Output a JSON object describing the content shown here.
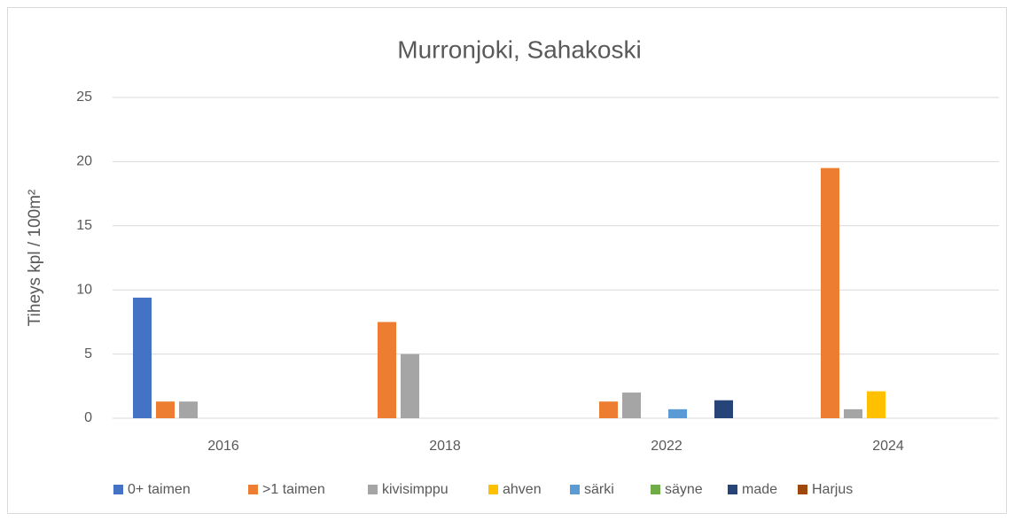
{
  "chart_data": {
    "type": "bar",
    "title": "Murronjoki, Sahakoski",
    "y_label": "Tiheys kpl / 100m²",
    "categories": [
      "2016",
      "2018",
      "2022",
      "2024"
    ],
    "series": [
      {
        "name": "0+ taimen",
        "color": "#4472c4",
        "values": [
          9.4,
          0,
          0,
          0
        ]
      },
      {
        "name": ">1 taimen",
        "color": "#ed7d31",
        "values": [
          1.3,
          7.5,
          1.3,
          19.5
        ]
      },
      {
        "name": "kivisimppu",
        "color": "#a5a5a5",
        "values": [
          1.3,
          5.0,
          2.0,
          0.7
        ]
      },
      {
        "name": "ahven",
        "color": "#ffc000",
        "values": [
          0,
          0,
          0,
          2.1
        ]
      },
      {
        "name": "särki",
        "color": "#5b9bd5",
        "values": [
          0,
          0,
          0.7,
          0
        ]
      },
      {
        "name": "säyne",
        "color": "#70ad47",
        "values": [
          0,
          0,
          0,
          0
        ]
      },
      {
        "name": "made",
        "color": "#264478",
        "values": [
          0,
          0,
          1.4,
          0
        ]
      },
      {
        "name": "Harjus",
        "color": "#9e480e",
        "values": [
          0,
          0,
          0,
          0
        ]
      }
    ],
    "ylim": [
      0,
      25
    ],
    "yticks": [
      0,
      5,
      10,
      15,
      20,
      25
    ],
    "grid": true,
    "legend": "bottom"
  }
}
